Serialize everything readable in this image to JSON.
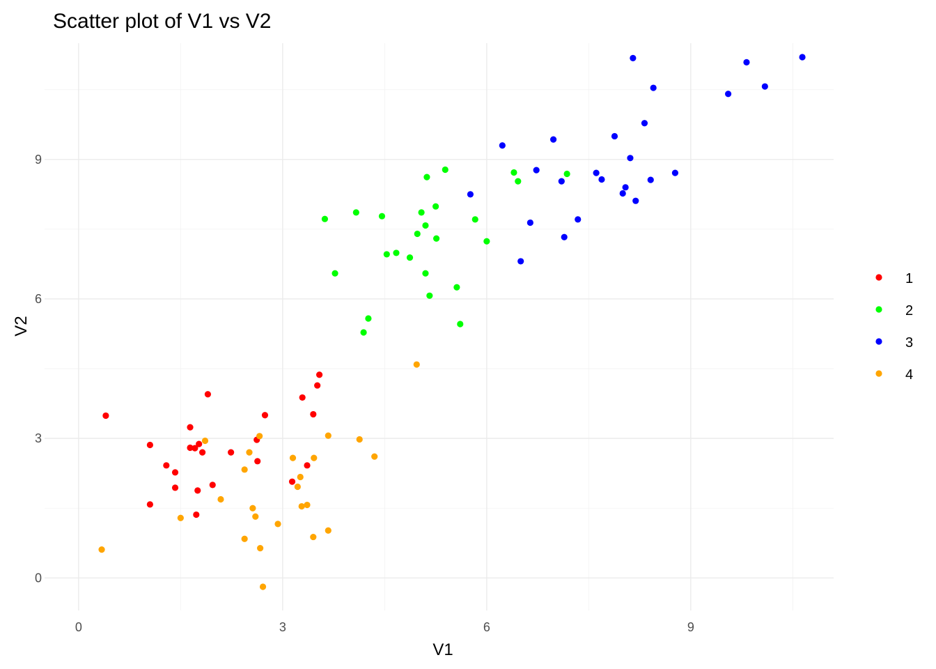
{
  "chart_data": {
    "type": "scatter",
    "title": "Scatter plot of V1 vs V2",
    "xlabel": "V1",
    "ylabel": "V2",
    "xlim": [
      -0.5,
      11.1
    ],
    "ylim": [
      -0.7,
      11.5
    ],
    "x_ticks": [
      0,
      3,
      6,
      9
    ],
    "y_ticks": [
      0,
      3,
      6,
      9
    ],
    "grid": true,
    "legend_position": "right",
    "series": [
      {
        "name": "1",
        "color": "#ff0000",
        "points": [
          [
            0.4,
            3.49
          ],
          [
            1.05,
            2.86
          ],
          [
            1.05,
            1.58
          ],
          [
            1.29,
            2.42
          ],
          [
            1.42,
            2.27
          ],
          [
            1.42,
            1.94
          ],
          [
            1.64,
            3.24
          ],
          [
            1.64,
            2.8
          ],
          [
            1.71,
            2.79
          ],
          [
            1.73,
            1.36
          ],
          [
            1.75,
            1.88
          ],
          [
            1.77,
            2.88
          ],
          [
            1.82,
            2.7
          ],
          [
            1.9,
            3.95
          ],
          [
            1.97,
            2.0
          ],
          [
            2.24,
            2.7
          ],
          [
            2.62,
            2.97
          ],
          [
            2.63,
            2.51
          ],
          [
            2.74,
            3.5
          ],
          [
            3.14,
            2.07
          ],
          [
            3.29,
            3.88
          ],
          [
            3.36,
            2.42
          ],
          [
            3.45,
            3.52
          ],
          [
            3.51,
            4.14
          ],
          [
            3.54,
            4.37
          ]
        ]
      },
      {
        "name": "2",
        "color": "#00ff00",
        "points": [
          [
            3.62,
            7.72
          ],
          [
            3.77,
            6.55
          ],
          [
            4.08,
            7.86
          ],
          [
            4.19,
            5.28
          ],
          [
            4.26,
            5.58
          ],
          [
            4.46,
            7.78
          ],
          [
            4.53,
            6.96
          ],
          [
            4.67,
            6.99
          ],
          [
            4.87,
            6.89
          ],
          [
            4.98,
            7.4
          ],
          [
            5.04,
            7.86
          ],
          [
            5.1,
            6.55
          ],
          [
            5.1,
            7.58
          ],
          [
            5.12,
            8.62
          ],
          [
            5.16,
            6.07
          ],
          [
            5.25,
            7.99
          ],
          [
            5.26,
            7.3
          ],
          [
            5.39,
            8.78
          ],
          [
            5.56,
            6.25
          ],
          [
            5.61,
            5.46
          ],
          [
            5.83,
            7.71
          ],
          [
            6.0,
            7.24
          ],
          [
            6.4,
            8.72
          ],
          [
            6.46,
            8.53
          ],
          [
            7.18,
            8.69
          ]
        ]
      },
      {
        "name": "3",
        "color": "#0000ff",
        "points": [
          [
            5.76,
            8.25
          ],
          [
            6.23,
            9.3
          ],
          [
            6.5,
            6.81
          ],
          [
            6.64,
            7.64
          ],
          [
            6.73,
            8.77
          ],
          [
            6.98,
            9.43
          ],
          [
            7.1,
            8.53
          ],
          [
            7.14,
            7.33
          ],
          [
            7.34,
            7.71
          ],
          [
            7.61,
            8.71
          ],
          [
            7.69,
            8.57
          ],
          [
            7.88,
            9.5
          ],
          [
            8.0,
            8.27
          ],
          [
            8.04,
            8.4
          ],
          [
            8.11,
            9.03
          ],
          [
            8.15,
            11.18
          ],
          [
            8.19,
            8.11
          ],
          [
            8.32,
            9.78
          ],
          [
            8.41,
            8.56
          ],
          [
            8.45,
            10.54
          ],
          [
            8.77,
            8.71
          ],
          [
            9.55,
            10.41
          ],
          [
            9.82,
            11.09
          ],
          [
            10.09,
            10.57
          ],
          [
            10.64,
            11.2
          ]
        ]
      },
      {
        "name": "4",
        "color": "#ffa500",
        "points": [
          [
            0.34,
            0.61
          ],
          [
            1.5,
            1.29
          ],
          [
            1.86,
            2.95
          ],
          [
            2.09,
            1.69
          ],
          [
            2.44,
            0.84
          ],
          [
            2.44,
            2.33
          ],
          [
            2.51,
            2.7
          ],
          [
            2.56,
            1.5
          ],
          [
            2.6,
            1.32
          ],
          [
            2.66,
            3.05
          ],
          [
            2.67,
            0.64
          ],
          [
            2.71,
            -0.19
          ],
          [
            2.93,
            1.16
          ],
          [
            3.15,
            2.58
          ],
          [
            3.22,
            1.96
          ],
          [
            3.26,
            2.17
          ],
          [
            3.28,
            1.54
          ],
          [
            3.36,
            1.57
          ],
          [
            3.45,
            0.88
          ],
          [
            3.46,
            2.58
          ],
          [
            3.67,
            3.06
          ],
          [
            3.67,
            1.02
          ],
          [
            4.13,
            2.98
          ],
          [
            4.35,
            2.61
          ],
          [
            4.97,
            4.59
          ]
        ]
      }
    ]
  }
}
